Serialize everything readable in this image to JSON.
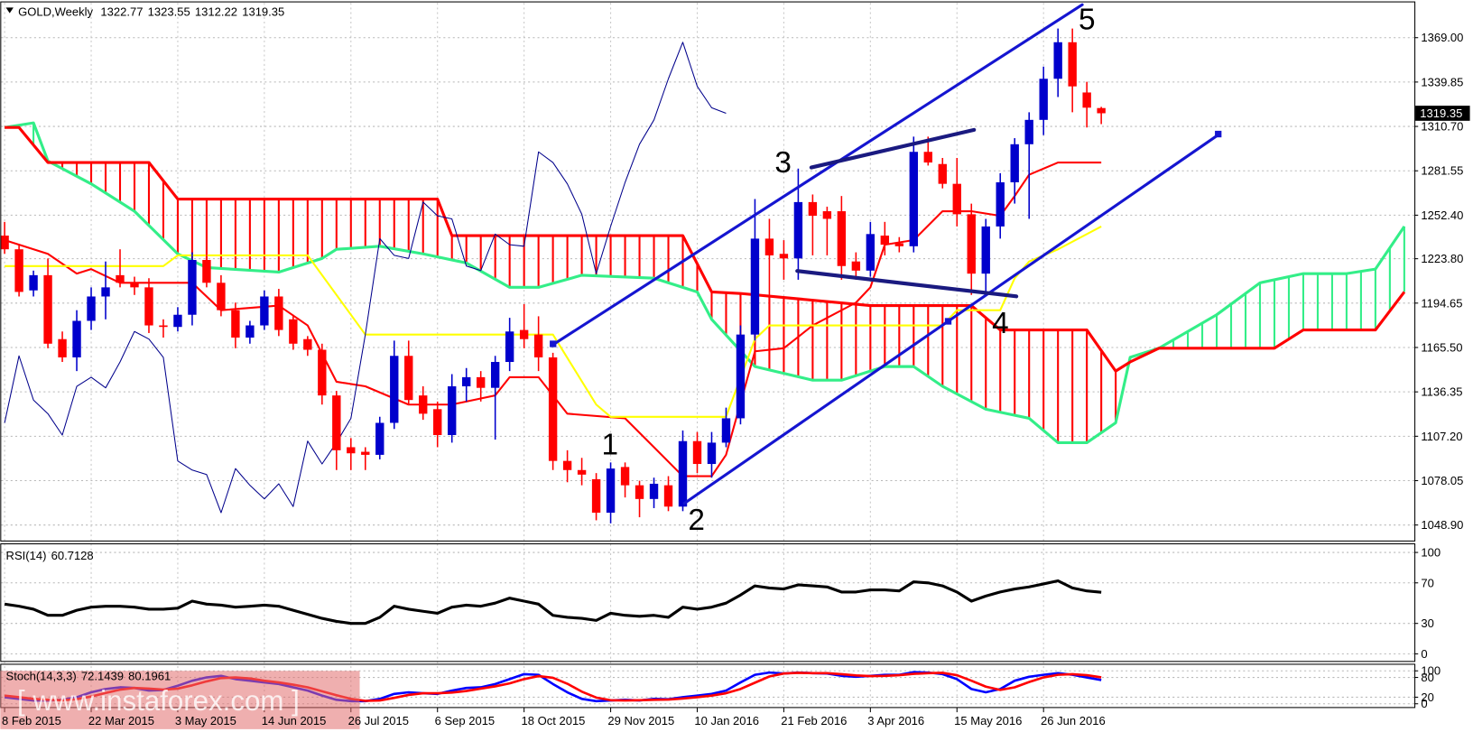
{
  "chart_data": [
    {
      "type": "candlestick",
      "title": "GOLD,Weekly",
      "open": [
        1239,
        1230,
        1203,
        1213,
        1171,
        1159,
        1183,
        1199,
        1213,
        1208,
        1205,
        1180,
        1179,
        1187,
        1223,
        1208,
        1190,
        1172,
        1180,
        1199,
        1184,
        1171,
        1164,
        1134,
        1100,
        1097,
        1095,
        1116,
        1160,
        1134,
        1125,
        1108,
        1140,
        1146,
        1139,
        1156,
        1177,
        1174,
        1159,
        1091,
        1085,
        1079,
        1057,
        1087,
        1075,
        1066,
        1075,
        1061,
        1104,
        1089,
        1103,
        1119,
        1174,
        1237,
        1227,
        1224,
        1261,
        1255,
        1255,
        1222,
        1216,
        1239,
        1234,
        1232,
        1294,
        1286,
        1273,
        1253,
        1214,
        1245,
        1274,
        1299,
        1315,
        1342,
        1366,
        1333,
        1322.77
      ],
      "high": [
        1248,
        1233,
        1216,
        1224,
        1176,
        1190,
        1205,
        1222,
        1230,
        1212,
        1211,
        1184,
        1192,
        1228,
        1228,
        1213,
        1195,
        1183,
        1203,
        1204,
        1187,
        1173,
        1168,
        1137,
        1106,
        1100,
        1120,
        1170,
        1170,
        1140,
        1130,
        1148,
        1152,
        1150,
        1160,
        1185,
        1194,
        1186,
        1162,
        1098,
        1093,
        1083,
        1090,
        1090,
        1078,
        1080,
        1081,
        1111,
        1110,
        1110,
        1126,
        1180,
        1263,
        1250,
        1236,
        1283,
        1266,
        1258,
        1265,
        1228,
        1248,
        1248,
        1238,
        1304,
        1304,
        1290,
        1290,
        1260,
        1250,
        1280,
        1303,
        1320,
        1350,
        1375,
        1375,
        1340,
        1323.55
      ],
      "low": [
        1227,
        1199,
        1199,
        1165,
        1156,
        1150,
        1177,
        1184,
        1205,
        1200,
        1175,
        1172,
        1176,
        1180,
        1205,
        1186,
        1165,
        1168,
        1177,
        1173,
        1164,
        1160,
        1128,
        1085,
        1085,
        1085,
        1092,
        1112,
        1128,
        1118,
        1100,
        1103,
        1130,
        1130,
        1105,
        1150,
        1165,
        1150,
        1085,
        1077,
        1075,
        1052,
        1050,
        1067,
        1054,
        1060,
        1058,
        1058,
        1083,
        1080,
        1100,
        1115,
        1170,
        1200,
        1210,
        1210,
        1226,
        1226,
        1210,
        1210,
        1212,
        1226,
        1228,
        1228,
        1285,
        1270,
        1245,
        1200,
        1200,
        1237,
        1260,
        1250,
        1305,
        1330,
        1320,
        1310,
        1312.22
      ],
      "close": [
        1230,
        1202,
        1213,
        1168,
        1159,
        1183,
        1199,
        1205,
        1208,
        1205,
        1180,
        1179,
        1187,
        1223,
        1208,
        1190,
        1172,
        1180,
        1199,
        1177,
        1168,
        1164,
        1134,
        1098,
        1096,
        1095,
        1116,
        1160,
        1131,
        1122,
        1108,
        1140,
        1146,
        1139,
        1156,
        1176,
        1171,
        1159,
        1091,
        1085,
        1082,
        1057,
        1086,
        1075,
        1066,
        1076,
        1061,
        1104,
        1089,
        1103,
        1119,
        1174,
        1237,
        1226,
        1224,
        1261,
        1252,
        1250,
        1219,
        1216,
        1240,
        1233,
        1232,
        1294,
        1287,
        1273,
        1253,
        1214,
        1245,
        1274,
        1299,
        1315,
        1342,
        1366,
        1337,
        1323,
        1319.35
      ],
      "up_color": "#0000cc",
      "down_color": "#ff0000",
      "series": [
        {
          "color": "#ff0000",
          "x": [
            0,
            3,
            5,
            6,
            8,
            10,
            13,
            15,
            19,
            21,
            23,
            25,
            28,
            31,
            34,
            35,
            37,
            39,
            43,
            45,
            47,
            49,
            50,
            52,
            54,
            56,
            59,
            60,
            61,
            63,
            65,
            67,
            69,
            70,
            71,
            73,
            76
          ],
          "values": [
            1236,
            1227,
            1214,
            1217,
            1208,
            1208,
            1208,
            1190,
            1193,
            1180,
            1143,
            1140,
            1128,
            1128,
            1134,
            1146,
            1146,
            1122,
            1119,
            1100,
            1081,
            1081,
            1095,
            1163,
            1165,
            1180,
            1195,
            1205,
            1233,
            1236,
            1255,
            1255,
            1252,
            1265,
            1279,
            1287,
            1287
          ]
        },
        {
          "color": "#ffff00",
          "x": [
            0,
            11,
            12,
            21,
            25,
            38,
            41,
            42,
            50,
            52,
            53,
            65,
            66,
            69,
            70,
            71,
            73,
            76
          ],
          "values": [
            1219,
            1219,
            1226,
            1226,
            1174,
            1174,
            1128,
            1120,
            1120,
            1171,
            1180,
            1180,
            1190,
            1190,
            1211,
            1222,
            1230,
            1245
          ]
        },
        {
          "color": "#00008b",
          "x": [
            0,
            1,
            2,
            3,
            4,
            5,
            6,
            7,
            8,
            9,
            10,
            11,
            12,
            13,
            14,
            15,
            16,
            17,
            18,
            19,
            20,
            21,
            22,
            23,
            24,
            25,
            26,
            27,
            28,
            29,
            30,
            31,
            32,
            33,
            34,
            35,
            36,
            37,
            38,
            39,
            40,
            41,
            42,
            43,
            44,
            45,
            46,
            47,
            48,
            49,
            50
          ],
          "values": [
            1116,
            1160,
            1131,
            1122,
            1108,
            1140,
            1146,
            1139,
            1156,
            1176,
            1171,
            1159,
            1091,
            1085,
            1082,
            1057,
            1086,
            1075,
            1066,
            1076,
            1061,
            1104,
            1089,
            1103,
            1119,
            1174,
            1237,
            1226,
            1224,
            1261,
            1252,
            1250,
            1219,
            1216,
            1240,
            1233,
            1232,
            1294,
            1287,
            1273,
            1253,
            1214,
            1245,
            1274,
            1299,
            1315,
            1342,
            1366,
            1337,
            1323,
            1319.35
          ]
        }
      ],
      "cloud": [
        {
          "color": "#33ee88",
          "x": [
            0,
            2,
            3,
            6,
            9,
            12,
            14,
            19,
            22,
            23,
            26,
            29,
            32,
            35,
            37,
            40,
            45,
            48,
            49,
            52,
            56,
            58,
            61,
            63,
            65,
            68,
            71,
            73,
            75,
            77,
            78,
            80,
            84,
            87,
            90,
            93,
            95,
            97
          ],
          "values": [
            1310,
            1313,
            1288,
            1273,
            1255,
            1227,
            1218,
            1215,
            1224,
            1230,
            1232,
            1227,
            1221,
            1205,
            1205,
            1213,
            1211,
            1202,
            1184,
            1153,
            1144,
            1144,
            1153,
            1153,
            1140,
            1125,
            1119,
            1103,
            1103,
            1116,
            1159,
            1165,
            1187,
            1208,
            1214,
            1214,
            1217,
            1245
          ]
        },
        {
          "color": "#ff0000",
          "x": [
            0,
            1,
            3,
            10,
            12,
            30,
            31,
            47,
            49,
            51,
            60,
            67,
            69,
            75,
            77,
            78,
            80,
            88,
            90,
            95,
            97
          ],
          "values": [
            1310,
            1310,
            1287,
            1287,
            1263,
            1263,
            1239,
            1239,
            1202,
            1201,
            1193,
            1193,
            1177,
            1177,
            1150,
            1156,
            1165,
            1165,
            1177,
            1177,
            1202
          ]
        }
      ],
      "annotations": [
        "1",
        "2",
        "3",
        "4",
        "5"
      ],
      "xlim": [
        -0.3,
        97.7
      ],
      "xticks": [
        {
          "value": 0,
          "label": "8 Feb 2015"
        },
        {
          "value": 6,
          "label": "22 Mar 2015"
        },
        {
          "value": 12,
          "label": "3 May 2015"
        },
        {
          "value": 18,
          "label": "14 Jun 2015"
        },
        {
          "value": 24,
          "label": "26 Jul 2015"
        },
        {
          "value": 30,
          "label": "6 Sep 2015"
        },
        {
          "value": 36,
          "label": "18 Oct 2015"
        },
        {
          "value": 42,
          "label": "29 Nov 2015"
        },
        {
          "value": 48,
          "label": "10 Jan 2016"
        },
        {
          "value": 54,
          "label": "21 Feb 2016"
        },
        {
          "value": 60,
          "label": "3 Apr 2016"
        },
        {
          "value": 66,
          "label": "15 May 2016"
        },
        {
          "value": 72,
          "label": "26 Jun 2016"
        }
      ],
      "ylim": [
        1038.4,
        1392.5
      ],
      "yticks": [
        {
          "value": 1048.9,
          "label": "1048.90"
        },
        1078.05,
        {
          "value": 1107.2,
          "label": "1107.20"
        },
        1136.35,
        {
          "value": 1165.5,
          "label": "1165.50"
        },
        1194.65,
        {
          "value": 1223.8,
          "label": "1223.80"
        },
        {
          "value": 1252.4,
          "label": "1252.40"
        },
        1281.55,
        {
          "value": 1310.7,
          "label": "1310.70"
        },
        1339.85,
        {
          "value": 1369,
          "label": "1369.00"
        }
      ],
      "grid": true
    },
    {
      "type": "line",
      "title": "RSI(14)",
      "color": "#000000",
      "values": [
        49,
        47,
        44,
        38,
        38,
        43,
        46,
        47,
        47,
        46,
        44,
        44,
        45,
        52,
        49,
        48,
        46,
        47,
        48,
        47,
        43,
        39,
        35,
        32,
        30,
        30,
        36,
        47,
        44,
        42,
        40,
        46,
        48,
        47,
        50,
        55,
        52,
        49,
        38,
        36,
        35,
        33,
        40,
        38,
        37,
        38,
        36,
        46,
        44,
        46,
        50,
        58,
        67,
        65,
        64,
        68,
        67,
        66,
        61,
        61,
        63,
        63,
        62,
        71,
        70,
        67,
        61,
        52,
        57,
        61,
        64,
        66,
        69,
        72,
        65,
        62,
        60.7128
      ],
      "xlim": [
        -0.3,
        97.7
      ],
      "ylim": [
        -7.5,
        108.5
      ],
      "yticks": [
        0,
        30,
        70,
        100
      ],
      "grid": true
    },
    {
      "type": "line",
      "title": "Stoch(14,3,3)",
      "series": [
        {
          "color": "#0000ff",
          "values": [
            20,
            15,
            10,
            10,
            12,
            20,
            35,
            45,
            50,
            48,
            40,
            42,
            55,
            70,
            80,
            85,
            75,
            70,
            65,
            60,
            50,
            40,
            25,
            12,
            8,
            8,
            15,
            30,
            35,
            32,
            30,
            40,
            48,
            50,
            60,
            75,
            90,
            88,
            60,
            35,
            15,
            8,
            10,
            12,
            10,
            15,
            14,
            20,
            25,
            30,
            40,
            65,
            88,
            95,
            92,
            95,
            93,
            92,
            85,
            82,
            85,
            88,
            88,
            96,
            95,
            90,
            75,
            45,
            35,
            45,
            70,
            82,
            88,
            93,
            88,
            80,
            72.1439
          ]
        },
        {
          "color": "#ff0000",
          "values": [
            25,
            20,
            15,
            12,
            11,
            14,
            22,
            33,
            43,
            48,
            46,
            43,
            46,
            56,
            68,
            78,
            80,
            77,
            70,
            65,
            58,
            50,
            38,
            26,
            15,
            9,
            10,
            18,
            27,
            32,
            32,
            34,
            39,
            46,
            53,
            62,
            75,
            84,
            79,
            61,
            37,
            19,
            11,
            10,
            11,
            12,
            13,
            16,
            20,
            25,
            32,
            45,
            64,
            83,
            92,
            94,
            93,
            93,
            90,
            86,
            84,
            85,
            87,
            91,
            93,
            94,
            87,
            70,
            52,
            42,
            50,
            66,
            80,
            88,
            90,
            87,
            80.1961
          ]
        }
      ],
      "xlim": [
        -0.3,
        97.7
      ],
      "ylim": [
        -11.4,
        120
      ],
      "yticks": [
        0,
        20,
        80,
        100
      ],
      "grid": true
    }
  ],
  "watermark": "[ www.instaforex.com ]"
}
